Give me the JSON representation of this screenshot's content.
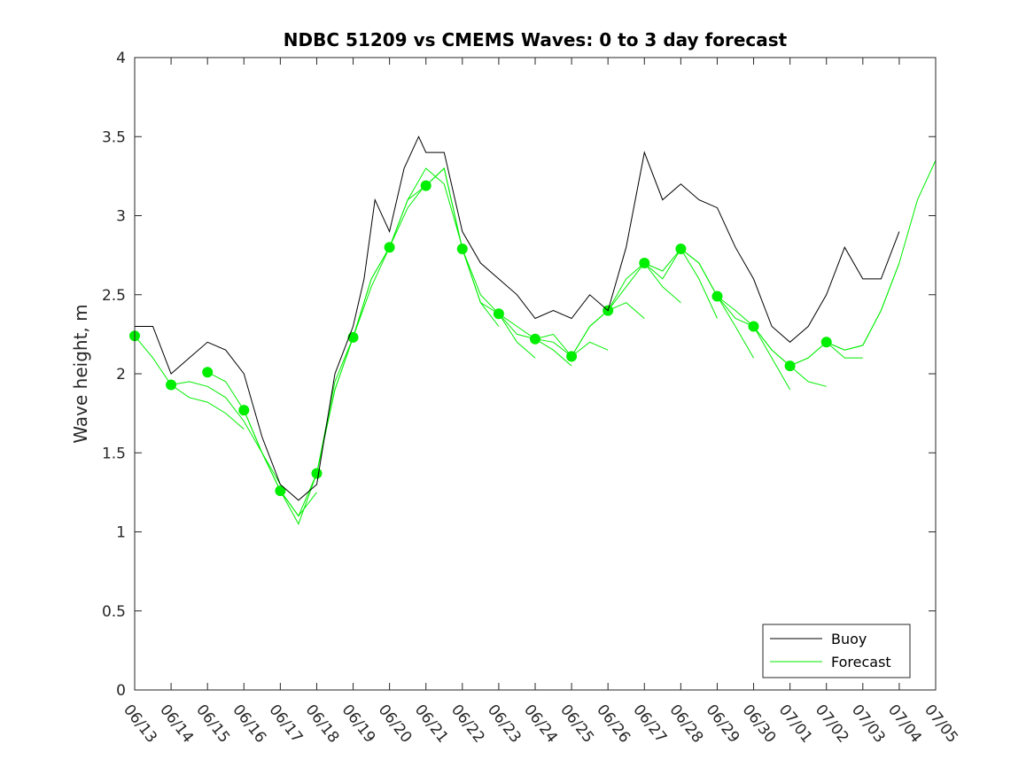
{
  "chart_data": {
    "type": "line",
    "title": "NDBC 51209 vs CMEMS Waves: 0 to 3 day forecast",
    "xlabel": "",
    "ylabel": "Wave height, m",
    "xlim": [
      "06/13",
      "07/05"
    ],
    "ylim": [
      0,
      4
    ],
    "x_tick_labels": [
      "06/13",
      "06/14",
      "06/15",
      "06/16",
      "06/17",
      "06/18",
      "06/19",
      "06/20",
      "06/21",
      "06/22",
      "06/23",
      "06/24",
      "06/25",
      "06/26",
      "06/27",
      "06/28",
      "06/29",
      "06/30",
      "07/01",
      "07/02",
      "07/03",
      "07/04",
      "07/05"
    ],
    "y_ticks": [
      0,
      0.5,
      1,
      1.5,
      2,
      2.5,
      3,
      3.5,
      4
    ],
    "y_tick_labels": [
      "0",
      "0.5",
      "1",
      "1.5",
      "2",
      "2.5",
      "3",
      "3.5",
      "4"
    ],
    "grid": false,
    "legend_position": "bottom-right",
    "colors": {
      "buoy": "#000000",
      "forecast": "#00ee00"
    },
    "series": [
      {
        "name": "Buoy",
        "points": [
          [
            0,
            2.3
          ],
          [
            0.5,
            2.3
          ],
          [
            1,
            2.0
          ],
          [
            1.5,
            2.1
          ],
          [
            2,
            2.2
          ],
          [
            2.5,
            2.15
          ],
          [
            3,
            2.0
          ],
          [
            3.5,
            1.6
          ],
          [
            4,
            1.3
          ],
          [
            4.5,
            1.2
          ],
          [
            5,
            1.3
          ],
          [
            5.5,
            2.0
          ],
          [
            6,
            2.3
          ],
          [
            6.3,
            2.6
          ],
          [
            6.6,
            3.1
          ],
          [
            7,
            2.9
          ],
          [
            7.4,
            3.3
          ],
          [
            7.8,
            3.5
          ],
          [
            8,
            3.4
          ],
          [
            8.5,
            3.4
          ],
          [
            9,
            2.9
          ],
          [
            9.5,
            2.7
          ],
          [
            10,
            2.6
          ],
          [
            10.5,
            2.5
          ],
          [
            11,
            2.35
          ],
          [
            11.5,
            2.4
          ],
          [
            12,
            2.35
          ],
          [
            12.5,
            2.5
          ],
          [
            13,
            2.4
          ],
          [
            13.5,
            2.8
          ],
          [
            14,
            3.4
          ],
          [
            14.5,
            3.1
          ],
          [
            15,
            3.2
          ],
          [
            15.5,
            3.1
          ],
          [
            16,
            3.05
          ],
          [
            16.5,
            2.8
          ],
          [
            17,
            2.6
          ],
          [
            17.5,
            2.3
          ],
          [
            18,
            2.2
          ],
          [
            18.5,
            2.3
          ],
          [
            19,
            2.5
          ],
          [
            19.5,
            2.8
          ],
          [
            20,
            2.6
          ],
          [
            20.5,
            2.6
          ],
          [
            21,
            2.9
          ]
        ]
      },
      {
        "name": "Forecast",
        "runs": [
          [
            [
              0,
              2.24
            ],
            [
              0.5,
              2.1
            ],
            [
              1,
              1.93
            ],
            [
              1.5,
              1.85
            ],
            [
              2,
              1.82
            ],
            [
              2.5,
              1.75
            ],
            [
              3,
              1.65
            ]
          ],
          [
            [
              1,
              1.93
            ],
            [
              1.5,
              1.95
            ],
            [
              2,
              1.92
            ],
            [
              2.5,
              1.85
            ],
            [
              3,
              1.7
            ],
            [
              3.5,
              1.5
            ],
            [
              4,
              1.3
            ]
          ],
          [
            [
              2,
              2.01
            ],
            [
              2.5,
              1.95
            ],
            [
              3,
              1.77
            ],
            [
              3.5,
              1.5
            ],
            [
              4,
              1.26
            ],
            [
              4.5,
              1.1
            ],
            [
              5,
              1.25
            ]
          ],
          [
            [
              3,
              1.77
            ],
            [
              3.5,
              1.5
            ],
            [
              4,
              1.26
            ],
            [
              4.5,
              1.05
            ],
            [
              5,
              1.37
            ],
            [
              5.5,
              1.9
            ],
            [
              6,
              2.23
            ]
          ],
          [
            [
              4,
              1.26
            ],
            [
              4.5,
              1.1
            ],
            [
              5,
              1.37
            ],
            [
              5.5,
              1.95
            ],
            [
              6,
              2.23
            ],
            [
              6.5,
              2.6
            ],
            [
              7,
              2.8
            ]
          ],
          [
            [
              5,
              1.37
            ],
            [
              5.5,
              1.9
            ],
            [
              6,
              2.23
            ],
            [
              6.5,
              2.6
            ],
            [
              7,
              2.8
            ],
            [
              7.5,
              3.05
            ],
            [
              8,
              3.2
            ]
          ],
          [
            [
              6,
              2.23
            ],
            [
              6.5,
              2.55
            ],
            [
              7,
              2.8
            ],
            [
              7.5,
              3.1
            ],
            [
              8,
              3.3
            ],
            [
              8.5,
              3.2
            ],
            [
              9,
              2.8
            ]
          ],
          [
            [
              7,
              2.8
            ],
            [
              7.5,
              3.1
            ],
            [
              8,
              3.19
            ],
            [
              8.5,
              3.3
            ],
            [
              9,
              2.79
            ],
            [
              9.5,
              2.45
            ],
            [
              10,
              2.3
            ]
          ],
          [
            [
              8,
              3.19
            ],
            [
              8.5,
              3.3
            ],
            [
              9,
              2.79
            ],
            [
              9.5,
              2.45
            ],
            [
              10,
              2.38
            ],
            [
              10.5,
              2.2
            ],
            [
              11,
              2.1
            ]
          ],
          [
            [
              9,
              2.79
            ],
            [
              9.5,
              2.5
            ],
            [
              10,
              2.38
            ],
            [
              10.5,
              2.25
            ],
            [
              11,
              2.22
            ],
            [
              11.5,
              2.15
            ],
            [
              12,
              2.05
            ]
          ],
          [
            [
              10,
              2.38
            ],
            [
              10.5,
              2.3
            ],
            [
              11,
              2.22
            ],
            [
              11.5,
              2.2
            ],
            [
              12,
              2.11
            ],
            [
              12.5,
              2.2
            ],
            [
              13,
              2.15
            ]
          ],
          [
            [
              11,
              2.22
            ],
            [
              11.5,
              2.25
            ],
            [
              12,
              2.11
            ],
            [
              12.5,
              2.3
            ],
            [
              13,
              2.4
            ],
            [
              13.5,
              2.45
            ],
            [
              14,
              2.35
            ]
          ],
          [
            [
              12,
              2.11
            ],
            [
              12.5,
              2.3
            ],
            [
              13,
              2.4
            ],
            [
              13.5,
              2.6
            ],
            [
              14,
              2.7
            ],
            [
              14.5,
              2.55
            ],
            [
              15,
              2.45
            ]
          ],
          [
            [
              13,
              2.4
            ],
            [
              13.5,
              2.55
            ],
            [
              14,
              2.7
            ],
            [
              14.5,
              2.6
            ],
            [
              15,
              2.79
            ],
            [
              15.5,
              2.6
            ],
            [
              16,
              2.35
            ]
          ],
          [
            [
              14,
              2.7
            ],
            [
              14.5,
              2.65
            ],
            [
              15,
              2.79
            ],
            [
              15.5,
              2.7
            ],
            [
              16,
              2.49
            ],
            [
              16.5,
              2.3
            ],
            [
              17,
              2.1
            ]
          ],
          [
            [
              15,
              2.79
            ],
            [
              15.5,
              2.7
            ],
            [
              16,
              2.49
            ],
            [
              16.5,
              2.35
            ],
            [
              17,
              2.3
            ],
            [
              17.5,
              2.1
            ],
            [
              18,
              1.9
            ]
          ],
          [
            [
              16,
              2.49
            ],
            [
              16.5,
              2.4
            ],
            [
              17,
              2.3
            ],
            [
              17.5,
              2.15
            ],
            [
              18,
              2.05
            ],
            [
              18.5,
              1.95
            ],
            [
              19,
              1.92
            ]
          ],
          [
            [
              17,
              2.3
            ],
            [
              17.5,
              2.15
            ],
            [
              18,
              2.05
            ],
            [
              18.5,
              2.1
            ],
            [
              19,
              2.2
            ],
            [
              19.5,
              2.1
            ],
            [
              20,
              2.1
            ]
          ],
          [
            [
              18,
              2.05
            ],
            [
              18.5,
              2.1
            ],
            [
              19,
              2.2
            ],
            [
              19.5,
              2.15
            ],
            [
              20,
              2.18
            ],
            [
              20.5,
              2.4
            ],
            [
              21,
              2.7
            ]
          ],
          [
            [
              19,
              2.2
            ],
            [
              19.5,
              2.15
            ],
            [
              20,
              2.18
            ],
            [
              20.5,
              2.4
            ],
            [
              21,
              2.7
            ],
            [
              21.5,
              3.1
            ],
            [
              22,
              3.35
            ]
          ]
        ]
      }
    ],
    "legend": [
      {
        "label": "Buoy",
        "color": "#000000"
      },
      {
        "label": "Forecast",
        "color": "#00ee00"
      }
    ]
  }
}
